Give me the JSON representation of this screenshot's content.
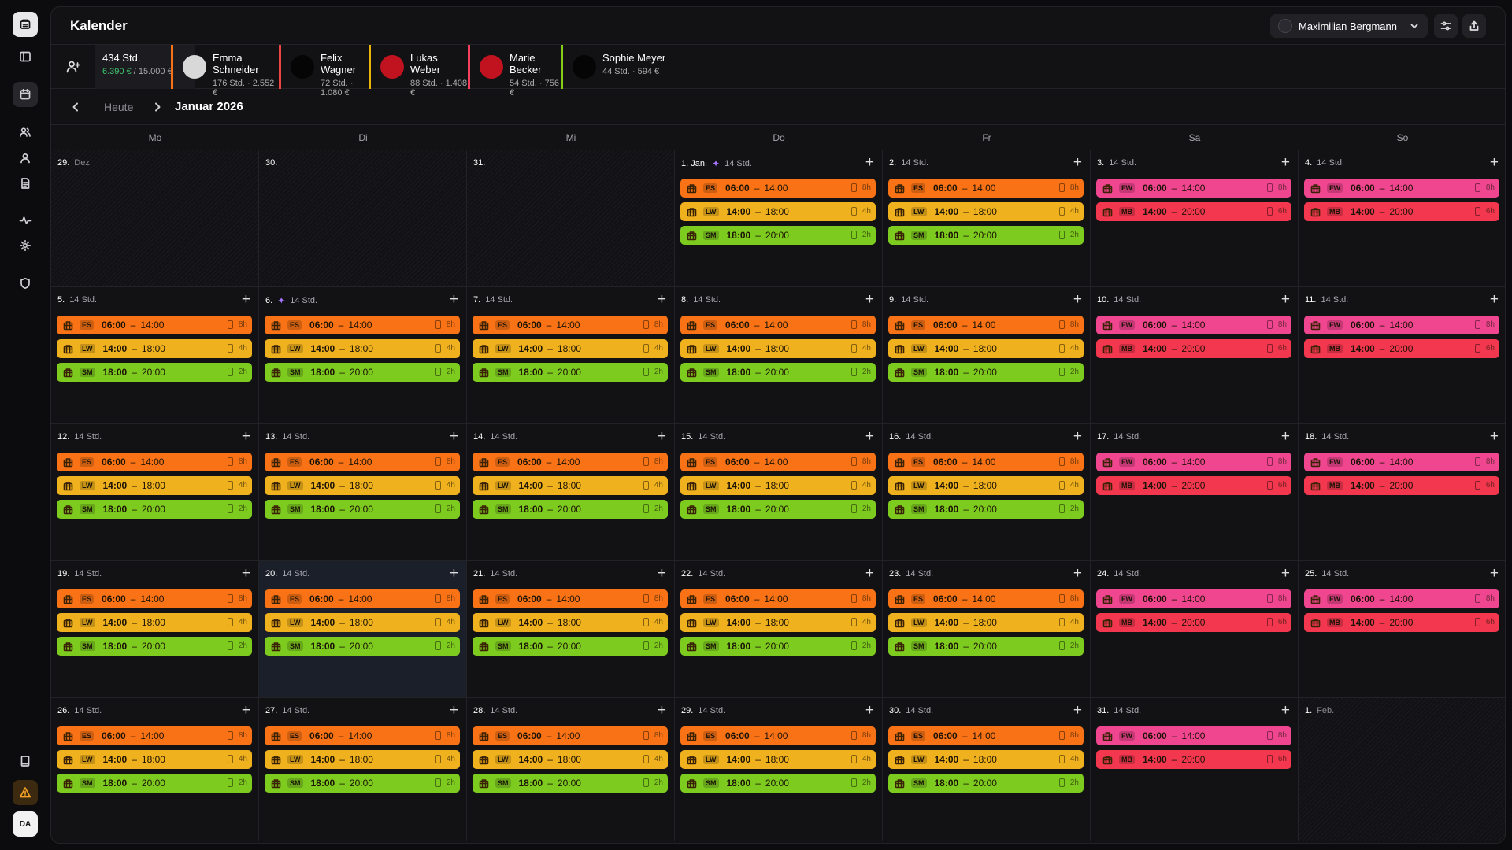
{
  "app": {
    "title": "Kalender"
  },
  "header": {
    "user_name": "Maximilian Bergmann"
  },
  "staff_summary": {
    "total_hours": "434 Std.",
    "total_amount": "6.390 €",
    "total_budget": "/ 15.000 €"
  },
  "employees": [
    {
      "name": "Emma Schneider",
      "stats": "176 Std. · 2.552 €",
      "color": "#f97316",
      "avatar": "#d8d8d8"
    },
    {
      "name": "Felix Wagner",
      "stats": "72 Std. · 1.080 €",
      "color": "#ef4444",
      "avatar": "#050505"
    },
    {
      "name": "Lukas Weber",
      "stats": "88 Std. · 1.408 €",
      "color": "#eab308",
      "avatar": "#c1121f"
    },
    {
      "name": "Marie Becker",
      "stats": "54 Std. · 756 €",
      "color": "#f43f5e",
      "avatar": "#c1121f"
    },
    {
      "name": "Sophie Meyer",
      "stats": "44 Std. · 594 €",
      "color": "#84cc16",
      "avatar": "#050505"
    }
  ],
  "nav": {
    "today_label": "Heute",
    "month_label": "Januar 2026"
  },
  "weekdays": [
    "Mo",
    "Di",
    "Mi",
    "Do",
    "Fr",
    "Sa",
    "So"
  ],
  "shift_colors": {
    "ES": "#f97316",
    "LW": "#f0b11e",
    "SM": "#7ecb20",
    "FW": "#f0468f",
    "MB": "#f2374f"
  },
  "weekday_shifts": [
    {
      "code": "ES",
      "start": "06:00",
      "end": "14:00",
      "dur": "8h"
    },
    {
      "code": "LW",
      "start": "14:00",
      "end": "18:00",
      "dur": "4h"
    },
    {
      "code": "SM",
      "start": "18:00",
      "end": "20:00",
      "dur": "2h"
    }
  ],
  "weekend_shifts": [
    {
      "code": "FW",
      "start": "06:00",
      "end": "14:00",
      "dur": "8h"
    },
    {
      "code": "MB",
      "start": "14:00",
      "end": "20:00",
      "dur": "6h"
    }
  ],
  "hours_label": "14 Std.",
  "weeks": [
    [
      {
        "d": "29.",
        "m": "Dez.",
        "out": true
      },
      {
        "d": "30.",
        "out": true
      },
      {
        "d": "31.",
        "out": true
      },
      {
        "d": "1. Jan.",
        "spark": true
      },
      {
        "d": "2."
      },
      {
        "d": "3."
      },
      {
        "d": "4."
      }
    ],
    [
      {
        "d": "5."
      },
      {
        "d": "6.",
        "spark": true
      },
      {
        "d": "7."
      },
      {
        "d": "8."
      },
      {
        "d": "9."
      },
      {
        "d": "10."
      },
      {
        "d": "11."
      }
    ],
    [
      {
        "d": "12."
      },
      {
        "d": "13."
      },
      {
        "d": "14."
      },
      {
        "d": "15."
      },
      {
        "d": "16."
      },
      {
        "d": "17."
      },
      {
        "d": "18."
      }
    ],
    [
      {
        "d": "19."
      },
      {
        "d": "20.",
        "today": true
      },
      {
        "d": "21."
      },
      {
        "d": "22."
      },
      {
        "d": "23."
      },
      {
        "d": "24."
      },
      {
        "d": "25."
      }
    ],
    [
      {
        "d": "26."
      },
      {
        "d": "27."
      },
      {
        "d": "28."
      },
      {
        "d": "29."
      },
      {
        "d": "30."
      },
      {
        "d": "31."
      },
      {
        "d": "1.",
        "m": "Feb.",
        "out": true
      }
    ]
  ]
}
